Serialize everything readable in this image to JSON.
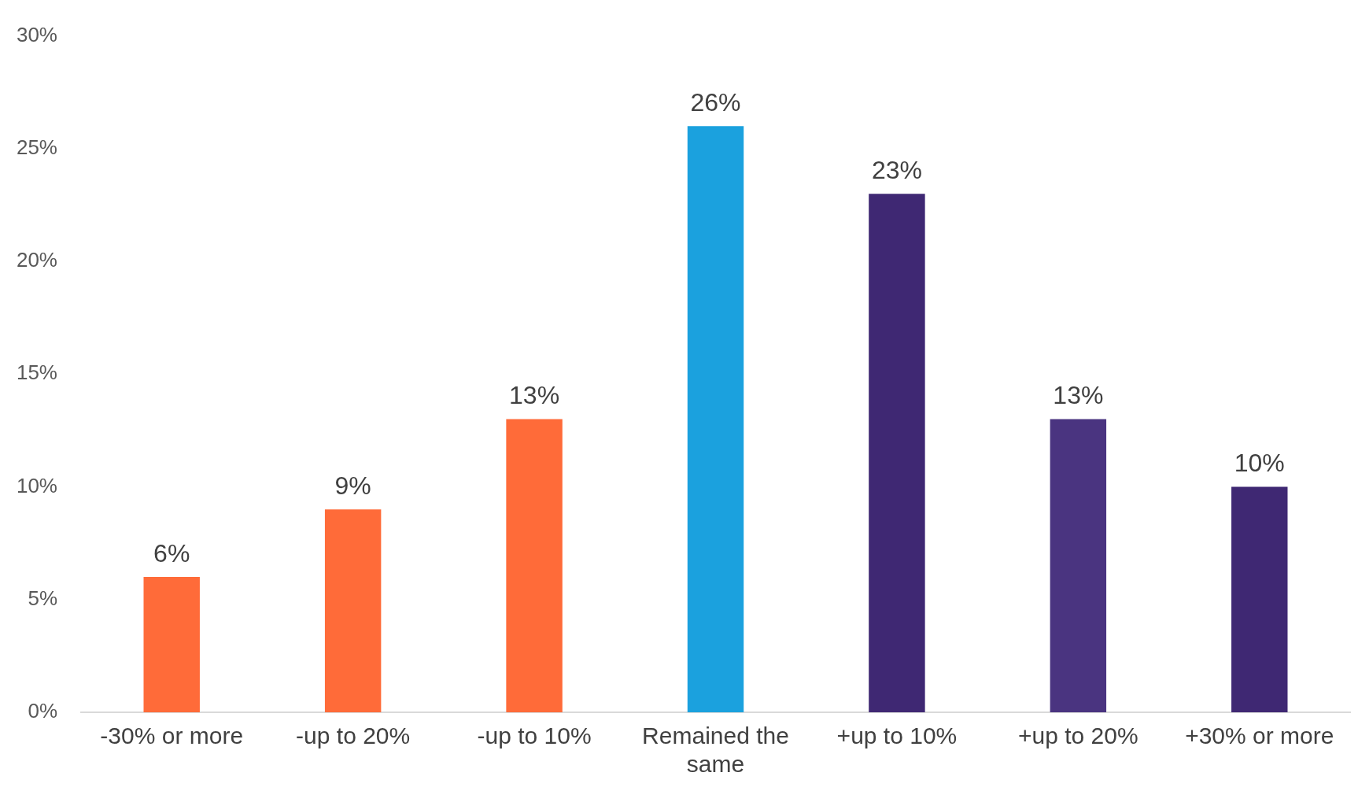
{
  "chart_data": {
    "type": "bar",
    "categories": [
      "-30% or more",
      "-up to 20%",
      "-up to 10%",
      "Remained the same",
      "+up to 10%",
      "+up to 20%",
      "+30% or more"
    ],
    "values": [
      6,
      9,
      13,
      26,
      23,
      13,
      10
    ],
    "colors": [
      "#ff6b39",
      "#ff6b39",
      "#ff6b39",
      "#1ba1de",
      "#3f2873",
      "#4a3480",
      "#3f2873"
    ],
    "value_labels": [
      "6%",
      "9%",
      "13%",
      "26%",
      "23%",
      "13%",
      "10%"
    ],
    "ylim": [
      0,
      30
    ],
    "yticks": [
      {
        "value": 0,
        "label": "0%"
      },
      {
        "value": 5,
        "label": "5%"
      },
      {
        "value": 10,
        "label": "10%"
      },
      {
        "value": 15,
        "label": "15%"
      },
      {
        "value": 20,
        "label": "20%"
      },
      {
        "value": 25,
        "label": "25%"
      },
      {
        "value": 30,
        "label": "30%"
      }
    ],
    "grid": false,
    "legend": false
  }
}
